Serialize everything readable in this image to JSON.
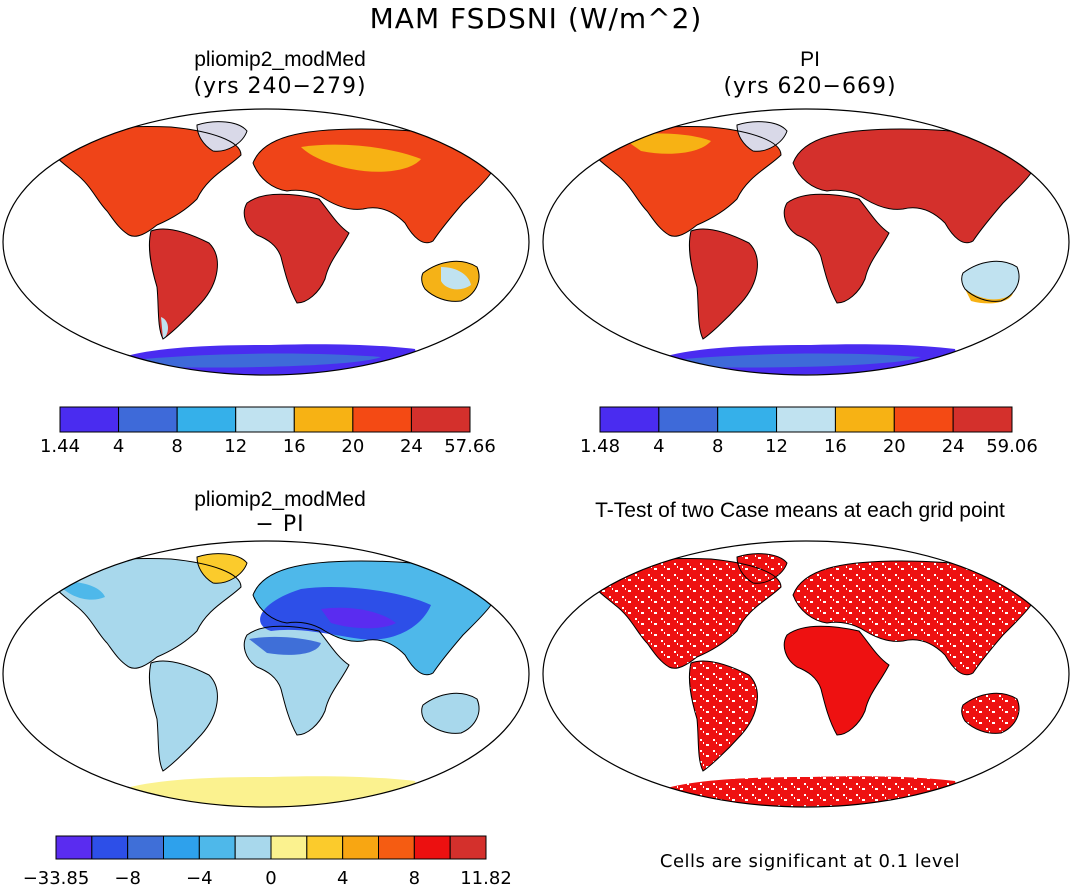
{
  "figure_title": "MAM FSDSNI (W/m^2)",
  "panels": [
    {
      "title": "pliomip2_modMed",
      "subtitle": "(yrs 240−279)"
    },
    {
      "title": "PI",
      "subtitle": "(yrs 620−669)"
    },
    {
      "title": "pliomip2_modMed",
      "subtitle": "− PI"
    },
    {
      "title": "T-Test of two Case means at each grid point",
      "subtitle": ""
    }
  ],
  "footnote": "Cells are significant at 0.1 level",
  "chart_data": [
    {
      "type": "heatmap",
      "title": "pliomip2_modMed",
      "subtitle": "(yrs 240−279)",
      "colorbar": {
        "bounds": [
          "1.44",
          "4",
          "8",
          "12",
          "16",
          "20",
          "24",
          "57.66"
        ],
        "colors": [
          "#4a2cf0",
          "#3e6ad9",
          "#35b0ea",
          "#c0e2f0",
          "#f7b214",
          "#f44a14",
          "#d4302c"
        ]
      }
    },
    {
      "type": "heatmap",
      "title": "PI",
      "subtitle": "(yrs 620−669)",
      "colorbar": {
        "bounds": [
          "1.48",
          "4",
          "8",
          "12",
          "16",
          "20",
          "24",
          "59.06"
        ],
        "colors": [
          "#4a2cf0",
          "#3e6ad9",
          "#35b0ea",
          "#c0e2f0",
          "#f7b214",
          "#f44a14",
          "#d4302c"
        ]
      }
    },
    {
      "type": "heatmap",
      "title": "pliomip2_modMed",
      "subtitle": "− PI",
      "colorbar": {
        "bounds": [
          "−33.85",
          "",
          "−8",
          "",
          "−4",
          "",
          "0",
          "",
          "4",
          "",
          "8",
          "",
          "11.82"
        ],
        "colors": [
          "#5a2cf0",
          "#2d4fe8",
          "#3f6fd8",
          "#2ea1ec",
          "#4eb8ea",
          "#a8d8ec",
          "#fbf28f",
          "#fbcb2c",
          "#f8a612",
          "#f55c12",
          "#ec1010",
          "#d4302c"
        ]
      }
    },
    {
      "type": "heatmap",
      "title": "T-Test of two Case means at each grid point",
      "legend": "Cells are significant at 0.1 level",
      "significant_color": "#ee1111"
    }
  ]
}
